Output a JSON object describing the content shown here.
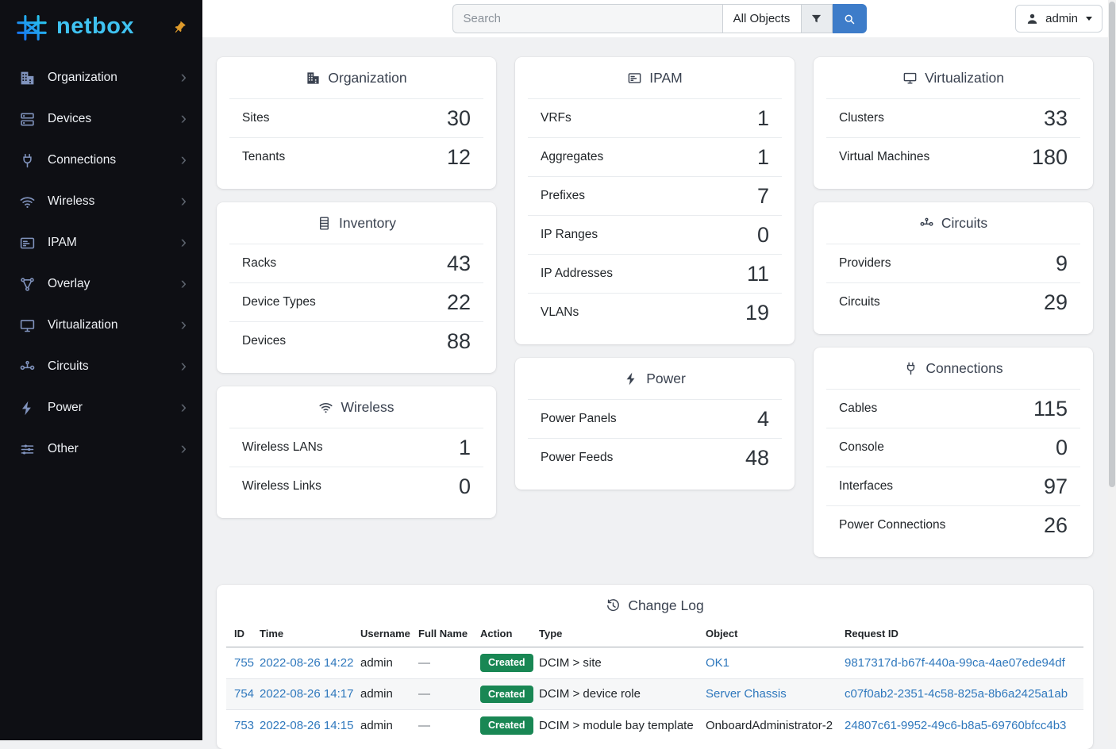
{
  "colors": {
    "sidebar_bg": "#0e0f14",
    "logo_cyan": "#3fc2f1",
    "pin_orange": "#dd9a2b",
    "search_button_blue": "#3d7cc9",
    "link_blue": "#2f78bd",
    "badge_created_green": "#198754",
    "page_bg": "#f0f1f3"
  },
  "sidebar": {
    "logo_text": "netbox",
    "items": [
      {
        "label": "Organization",
        "icon": "building-icon"
      },
      {
        "label": "Devices",
        "icon": "server-icon"
      },
      {
        "label": "Connections",
        "icon": "cable-icon"
      },
      {
        "label": "Wireless",
        "icon": "wifi-icon"
      },
      {
        "label": "IPAM",
        "icon": "ipam-icon"
      },
      {
        "label": "Overlay",
        "icon": "graph-icon"
      },
      {
        "label": "Virtualization",
        "icon": "monitor-icon"
      },
      {
        "label": "Circuits",
        "icon": "transit-icon"
      },
      {
        "label": "Power",
        "icon": "bolt-icon"
      },
      {
        "label": "Other",
        "icon": "tune-icon"
      }
    ]
  },
  "topbar": {
    "search_placeholder": "Search",
    "object_type": "All Objects",
    "username": "admin"
  },
  "dashboard": {
    "columns": [
      [
        {
          "title": "Organization",
          "icon": "building-icon",
          "rows": [
            {
              "label": "Sites",
              "value": 30
            },
            {
              "label": "Tenants",
              "value": 12
            }
          ]
        },
        {
          "title": "Inventory",
          "icon": "rack-icon",
          "rows": [
            {
              "label": "Racks",
              "value": 43
            },
            {
              "label": "Device Types",
              "value": 22
            },
            {
              "label": "Devices",
              "value": 88
            }
          ]
        },
        {
          "title": "Wireless",
          "icon": "wifi-icon",
          "rows": [
            {
              "label": "Wireless LANs",
              "value": 1
            },
            {
              "label": "Wireless Links",
              "value": 0
            }
          ]
        }
      ],
      [
        {
          "title": "IPAM",
          "icon": "ipam-icon",
          "rows": [
            {
              "label": "VRFs",
              "value": 1
            },
            {
              "label": "Aggregates",
              "value": 1
            },
            {
              "label": "Prefixes",
              "value": 7
            },
            {
              "label": "IP Ranges",
              "value": 0
            },
            {
              "label": "IP Addresses",
              "value": 11
            },
            {
              "label": "VLANs",
              "value": 19
            }
          ]
        },
        {
          "title": "Power",
          "icon": "bolt-icon",
          "rows": [
            {
              "label": "Power Panels",
              "value": 4
            },
            {
              "label": "Power Feeds",
              "value": 48
            }
          ]
        }
      ],
      [
        {
          "title": "Virtualization",
          "icon": "monitor-icon",
          "rows": [
            {
              "label": "Clusters",
              "value": 33
            },
            {
              "label": "Virtual Machines",
              "value": 180
            }
          ]
        },
        {
          "title": "Circuits",
          "icon": "transit-icon",
          "rows": [
            {
              "label": "Providers",
              "value": 9
            },
            {
              "label": "Circuits",
              "value": 29
            }
          ]
        },
        {
          "title": "Connections",
          "icon": "cable-icon",
          "rows": [
            {
              "label": "Cables",
              "value": 115
            },
            {
              "label": "Console",
              "value": 0
            },
            {
              "label": "Interfaces",
              "value": 97
            },
            {
              "label": "Power Connections",
              "value": 26
            }
          ]
        }
      ]
    ]
  },
  "changelog": {
    "title": "Change Log",
    "icon": "history-icon",
    "columns": [
      "ID",
      "Time",
      "Username",
      "Full Name",
      "Action",
      "Type",
      "Object",
      "Request ID"
    ],
    "rows": [
      {
        "id": "755",
        "time": "2022-08-26 14:22",
        "username": "admin",
        "full_name": "—",
        "action": "Created",
        "type": "DCIM > site",
        "object": "OK1",
        "object_is_link": true,
        "request_id": "9817317d-b67f-440a-99ca-4ae07ede94df"
      },
      {
        "id": "754",
        "time": "2022-08-26 14:17",
        "username": "admin",
        "full_name": "—",
        "action": "Created",
        "type": "DCIM > device role",
        "object": "Server Chassis",
        "object_is_link": true,
        "request_id": "c07f0ab2-2351-4c58-825a-8b6a2425a1ab"
      },
      {
        "id": "753",
        "time": "2022-08-26 14:15",
        "username": "admin",
        "full_name": "—",
        "action": "Created",
        "type": "DCIM > module bay template",
        "object": "OnboardAdministrator-2",
        "object_is_link": false,
        "request_id": "24807c61-9952-49c6-b8a5-69760bfcc4b3"
      }
    ]
  }
}
